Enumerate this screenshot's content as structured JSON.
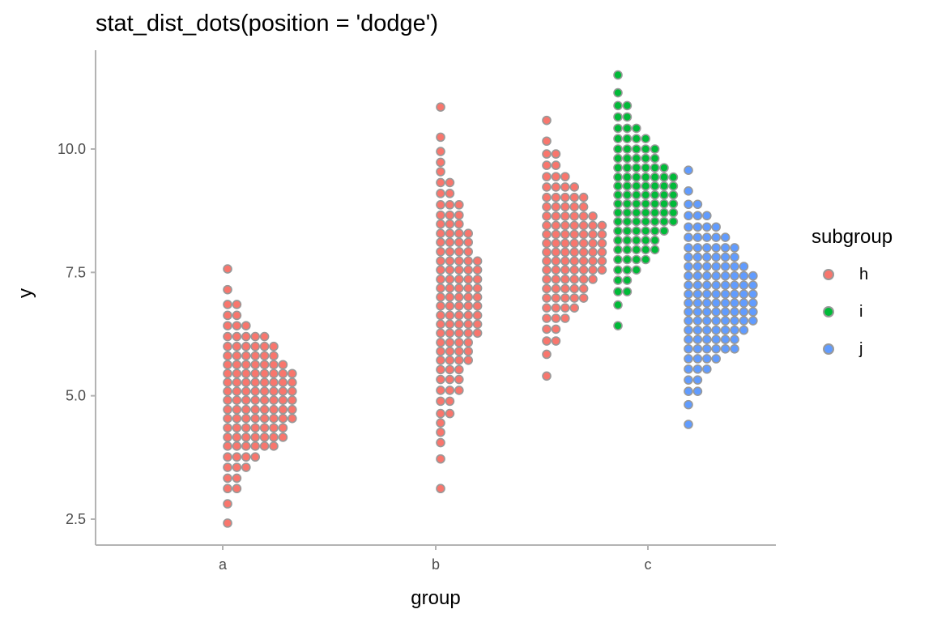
{
  "chart_data": {
    "type": "dotplot",
    "title": "stat_dist_dots(position = 'dodge')",
    "xlabel": "group",
    "ylabel": "y",
    "categories": [
      "a",
      "b",
      "c"
    ],
    "yticks": [
      "2.5",
      "5.0",
      "7.5",
      "10.0"
    ],
    "ylim": [
      2.0,
      11.9
    ],
    "grid": false,
    "legend_position": "right",
    "legend": {
      "title": "subgroup",
      "items": [
        {
          "label": "h",
          "color": "#F8766D"
        },
        {
          "label": "i",
          "color": "#00BA38"
        },
        {
          "label": "j",
          "color": "#619CFF"
        }
      ]
    },
    "series": [
      {
        "name": "h",
        "group": "a",
        "color": "#F8766D",
        "bins": [
          {
            "y": 2.42,
            "count": 1
          },
          {
            "y": 2.81,
            "count": 1
          },
          {
            "y": 3.12,
            "count": 2
          },
          {
            "y": 3.33,
            "count": 2
          },
          {
            "y": 3.55,
            "count": 3
          },
          {
            "y": 3.76,
            "count": 4
          },
          {
            "y": 3.98,
            "count": 6
          },
          {
            "y": 4.16,
            "count": 7
          },
          {
            "y": 4.35,
            "count": 7
          },
          {
            "y": 4.54,
            "count": 8
          },
          {
            "y": 4.72,
            "count": 8
          },
          {
            "y": 4.91,
            "count": 8
          },
          {
            "y": 5.09,
            "count": 8
          },
          {
            "y": 5.27,
            "count": 8
          },
          {
            "y": 5.45,
            "count": 8
          },
          {
            "y": 5.63,
            "count": 7
          },
          {
            "y": 5.81,
            "count": 6
          },
          {
            "y": 6.0,
            "count": 6
          },
          {
            "y": 6.2,
            "count": 5
          },
          {
            "y": 6.42,
            "count": 3
          },
          {
            "y": 6.63,
            "count": 2
          },
          {
            "y": 6.85,
            "count": 2
          },
          {
            "y": 7.15,
            "count": 1
          },
          {
            "y": 7.57,
            "count": 1
          }
        ]
      },
      {
        "name": "h",
        "group": "b",
        "color": "#F8766D",
        "bins": [
          {
            "y": 3.12,
            "count": 1
          },
          {
            "y": 3.72,
            "count": 1
          },
          {
            "y": 4.05,
            "count": 1
          },
          {
            "y": 4.26,
            "count": 1
          },
          {
            "y": 4.45,
            "count": 1
          },
          {
            "y": 4.64,
            "count": 2
          },
          {
            "y": 4.89,
            "count": 2
          },
          {
            "y": 5.11,
            "count": 3
          },
          {
            "y": 5.33,
            "count": 3
          },
          {
            "y": 5.53,
            "count": 3
          },
          {
            "y": 5.72,
            "count": 4
          },
          {
            "y": 5.9,
            "count": 4
          },
          {
            "y": 6.08,
            "count": 4
          },
          {
            "y": 6.27,
            "count": 5
          },
          {
            "y": 6.45,
            "count": 5
          },
          {
            "y": 6.63,
            "count": 5
          },
          {
            "y": 6.82,
            "count": 5
          },
          {
            "y": 7.0,
            "count": 5
          },
          {
            "y": 7.18,
            "count": 5
          },
          {
            "y": 7.36,
            "count": 5
          },
          {
            "y": 7.55,
            "count": 5
          },
          {
            "y": 7.73,
            "count": 5
          },
          {
            "y": 7.92,
            "count": 4
          },
          {
            "y": 8.11,
            "count": 4
          },
          {
            "y": 8.29,
            "count": 4
          },
          {
            "y": 8.48,
            "count": 3
          },
          {
            "y": 8.66,
            "count": 3
          },
          {
            "y": 8.87,
            "count": 3
          },
          {
            "y": 9.1,
            "count": 2
          },
          {
            "y": 9.32,
            "count": 2
          },
          {
            "y": 9.54,
            "count": 1
          },
          {
            "y": 9.73,
            "count": 1
          },
          {
            "y": 9.95,
            "count": 1
          },
          {
            "y": 10.24,
            "count": 1
          },
          {
            "y": 10.85,
            "count": 1
          }
        ]
      },
      {
        "name": "h",
        "group": "c",
        "color": "#F8766D",
        "bins": [
          {
            "y": 5.4,
            "count": 1
          },
          {
            "y": 5.84,
            "count": 1
          },
          {
            "y": 6.11,
            "count": 2
          },
          {
            "y": 6.35,
            "count": 2
          },
          {
            "y": 6.57,
            "count": 3
          },
          {
            "y": 6.78,
            "count": 4
          },
          {
            "y": 6.98,
            "count": 5
          },
          {
            "y": 7.17,
            "count": 5
          },
          {
            "y": 7.36,
            "count": 6
          },
          {
            "y": 7.55,
            "count": 7
          },
          {
            "y": 7.73,
            "count": 7
          },
          {
            "y": 7.91,
            "count": 7
          },
          {
            "y": 8.09,
            "count": 7
          },
          {
            "y": 8.27,
            "count": 7
          },
          {
            "y": 8.45,
            "count": 7
          },
          {
            "y": 8.64,
            "count": 6
          },
          {
            "y": 8.83,
            "count": 5
          },
          {
            "y": 9.02,
            "count": 5
          },
          {
            "y": 9.23,
            "count": 4
          },
          {
            "y": 9.44,
            "count": 3
          },
          {
            "y": 9.67,
            "count": 2
          },
          {
            "y": 9.9,
            "count": 2
          },
          {
            "y": 10.16,
            "count": 1
          },
          {
            "y": 10.58,
            "count": 1
          }
        ]
      },
      {
        "name": "i",
        "group": "c",
        "color": "#00BA38",
        "bins": [
          {
            "y": 6.42,
            "count": 1
          },
          {
            "y": 6.84,
            "count": 1
          },
          {
            "y": 7.11,
            "count": 2
          },
          {
            "y": 7.34,
            "count": 2
          },
          {
            "y": 7.55,
            "count": 3
          },
          {
            "y": 7.76,
            "count": 4
          },
          {
            "y": 7.96,
            "count": 5
          },
          {
            "y": 8.15,
            "count": 5
          },
          {
            "y": 8.34,
            "count": 6
          },
          {
            "y": 8.53,
            "count": 7
          },
          {
            "y": 8.71,
            "count": 7
          },
          {
            "y": 8.89,
            "count": 7
          },
          {
            "y": 9.07,
            "count": 7
          },
          {
            "y": 9.25,
            "count": 7
          },
          {
            "y": 9.43,
            "count": 7
          },
          {
            "y": 9.62,
            "count": 6
          },
          {
            "y": 9.81,
            "count": 5
          },
          {
            "y": 10.0,
            "count": 5
          },
          {
            "y": 10.21,
            "count": 4
          },
          {
            "y": 10.42,
            "count": 3
          },
          {
            "y": 10.65,
            "count": 2
          },
          {
            "y": 10.88,
            "count": 2
          },
          {
            "y": 11.14,
            "count": 1
          },
          {
            "y": 11.5,
            "count": 1
          }
        ]
      },
      {
        "name": "j",
        "group": "c",
        "color": "#619CFF",
        "bins": [
          {
            "y": 4.42,
            "count": 1
          },
          {
            "y": 4.82,
            "count": 1
          },
          {
            "y": 5.09,
            "count": 2
          },
          {
            "y": 5.32,
            "count": 2
          },
          {
            "y": 5.54,
            "count": 3
          },
          {
            "y": 5.75,
            "count": 4
          },
          {
            "y": 5.95,
            "count": 6
          },
          {
            "y": 6.14,
            "count": 6
          },
          {
            "y": 6.33,
            "count": 7
          },
          {
            "y": 6.52,
            "count": 8
          },
          {
            "y": 6.7,
            "count": 8
          },
          {
            "y": 6.88,
            "count": 8
          },
          {
            "y": 7.06,
            "count": 8
          },
          {
            "y": 7.24,
            "count": 8
          },
          {
            "y": 7.43,
            "count": 8
          },
          {
            "y": 7.62,
            "count": 7
          },
          {
            "y": 7.81,
            "count": 6
          },
          {
            "y": 8.0,
            "count": 6
          },
          {
            "y": 8.21,
            "count": 5
          },
          {
            "y": 8.42,
            "count": 4
          },
          {
            "y": 8.65,
            "count": 3
          },
          {
            "y": 8.88,
            "count": 2
          },
          {
            "y": 9.15,
            "count": 1
          },
          {
            "y": 9.57,
            "count": 1
          }
        ]
      }
    ]
  }
}
